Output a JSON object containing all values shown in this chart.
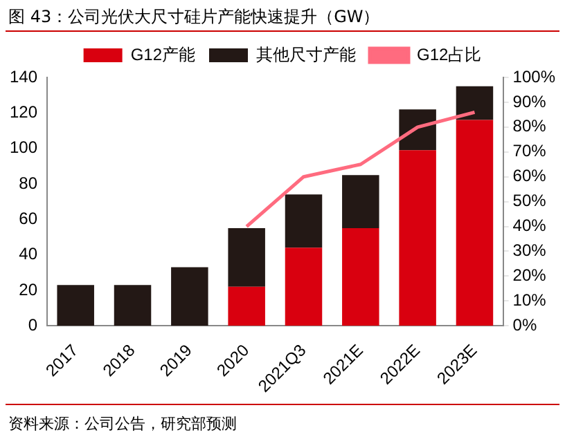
{
  "chart_data": {
    "type": "bar",
    "title": "图 43：公司光伏大尺寸硅片产能快速提升（GW）",
    "stacked": true,
    "legend": "top",
    "grid": false,
    "categories": [
      "2017",
      "2018",
      "2019",
      "2020",
      "2021Q3",
      "2021E",
      "2022E",
      "2023E"
    ],
    "series": [
      {
        "name": "G12产能",
        "color": "#d9000f",
        "values": [
          0,
          0,
          0,
          22,
          44,
          55,
          99,
          116
        ]
      },
      {
        "name": "其他尺寸产能",
        "color": "#231815",
        "values": [
          23,
          23,
          33,
          33,
          30,
          30,
          23,
          19
        ]
      },
      {
        "name": "G12占比",
        "type": "line",
        "axis": "y2",
        "color": "#ff6b7f",
        "values": [
          null,
          null,
          null,
          40,
          60,
          65,
          80,
          86
        ]
      }
    ],
    "ylim": [
      0,
      140
    ],
    "yticks": [
      0,
      20,
      40,
      60,
      80,
      100,
      120,
      140
    ],
    "y2lim": [
      0,
      100
    ],
    "y2ticks": [
      {
        "value": 0,
        "label": "0%"
      },
      {
        "value": 10,
        "label": "10%"
      },
      {
        "value": 20,
        "label": "20%"
      },
      {
        "value": 30,
        "label": "30%"
      },
      {
        "value": 40,
        "label": "40%"
      },
      {
        "value": 50,
        "label": "50%"
      },
      {
        "value": 60,
        "label": "60%"
      },
      {
        "value": 70,
        "label": "70%"
      },
      {
        "value": 80,
        "label": "80%"
      },
      {
        "value": 90,
        "label": "90%"
      },
      {
        "value": 100,
        "label": "100%"
      }
    ],
    "annotations": [
      "资料来源：公司公告，研究部预测"
    ]
  }
}
